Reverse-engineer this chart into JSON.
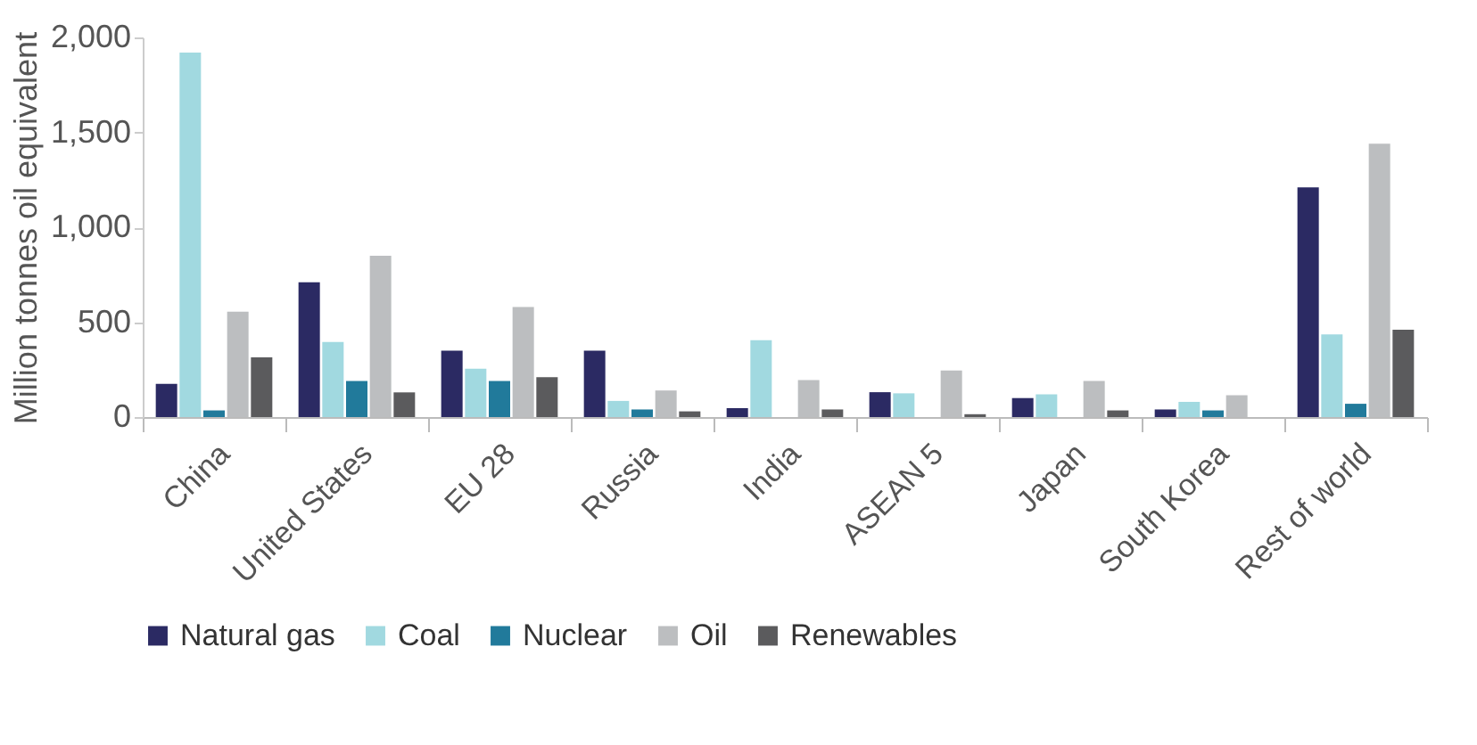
{
  "chart_data": {
    "type": "bar",
    "ylabel": "Million tonnes oil equivalent",
    "categories": [
      "China",
      "United States",
      "EU 28",
      "Russia",
      "India",
      "ASEAN 5",
      "Japan",
      "South Korea",
      "Rest of world"
    ],
    "series": [
      {
        "name": "Natural gas",
        "color": "#2b2a63",
        "values": [
          175,
          710,
          350,
          350,
          47,
          131,
          100,
          40,
          1210
        ]
      },
      {
        "name": "Coal",
        "color": "#a1d9e0",
        "values": [
          1920,
          395,
          255,
          85,
          405,
          125,
          120,
          80,
          435
        ]
      },
      {
        "name": "Nuclear",
        "color": "#217a9b",
        "values": [
          35,
          190,
          190,
          40,
          null,
          null,
          null,
          35,
          70
        ]
      },
      {
        "name": "Oil",
        "color": "#bcbec0",
        "values": [
          555,
          850,
          580,
          140,
          195,
          245,
          190,
          115,
          1440
        ]
      },
      {
        "name": "Renewables",
        "color": "#5b5b5d",
        "values": [
          315,
          130,
          210,
          30,
          40,
          15,
          35,
          null,
          460
        ]
      }
    ],
    "ylim": [
      0,
      2000
    ],
    "yticks": [
      {
        "value": 0,
        "label": "0"
      },
      {
        "value": 500,
        "label": "500"
      },
      {
        "value": 1000,
        "label": "1,000"
      },
      {
        "value": 1500,
        "label": "1,500"
      },
      {
        "value": 2000,
        "label": "2,000"
      }
    ],
    "grid": false,
    "legend": "bottom"
  }
}
